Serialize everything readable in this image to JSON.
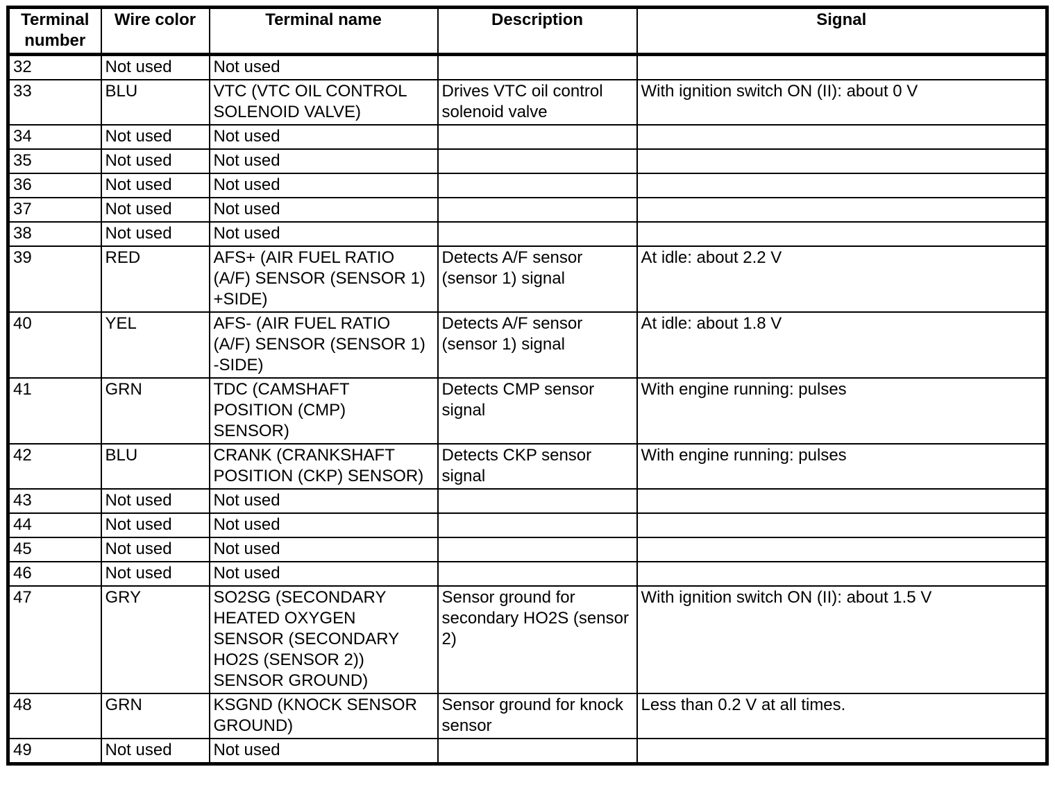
{
  "table": {
    "headers": [
      "Terminal\nnumber",
      "Wire color",
      "Terminal name",
      "Description",
      "Signal"
    ],
    "rows": [
      {
        "cells": [
          "32",
          "Not used",
          "Not used",
          "",
          ""
        ]
      },
      {
        "cells": [
          "33",
          "BLU",
          "VTC (VTC OIL CONTROL\nSOLENOID VALVE)",
          "Drives VTC oil control\nsolenoid valve",
          "With ignition switch ON (II): about 0 V"
        ]
      },
      {
        "cells": [
          "34",
          "Not used",
          "Not used",
          "",
          ""
        ]
      },
      {
        "cells": [
          "35",
          "Not used",
          "Not used",
          "",
          ""
        ]
      },
      {
        "cells": [
          "36",
          "Not used",
          "Not used",
          "",
          ""
        ]
      },
      {
        "cells": [
          "37",
          "Not used",
          "Not used",
          "",
          ""
        ]
      },
      {
        "cells": [
          "38",
          "Not used",
          "Not used",
          "",
          ""
        ]
      },
      {
        "cells": [
          "39",
          "RED",
          "AFS+ (AIR FUEL RATIO\n(A/F) SENSOR (SENSOR 1)\n+SIDE)",
          "Detects A/F sensor\n(sensor 1) signal",
          "At idle: about 2.2 V"
        ]
      },
      {
        "cells": [
          "40",
          "YEL",
          "AFS- (AIR FUEL RATIO\n(A/F) SENSOR (SENSOR 1)\n-SIDE)",
          "Detects A/F sensor\n(sensor 1) signal",
          "At idle: about 1.8 V"
        ]
      },
      {
        "cells": [
          "41",
          "GRN",
          "TDC (CAMSHAFT\nPOSITION (CMP)\nSENSOR)",
          "Detects CMP sensor\nsignal",
          "With engine running: pulses"
        ]
      },
      {
        "cells": [
          "42",
          "BLU",
          "CRANK (CRANKSHAFT\nPOSITION (CKP) SENSOR)",
          "Detects CKP sensor\nsignal",
          "With engine running: pulses"
        ]
      },
      {
        "cells": [
          "43",
          "Not used",
          "Not used",
          "",
          ""
        ]
      },
      {
        "cells": [
          "44",
          "Not used",
          "Not used",
          "",
          ""
        ]
      },
      {
        "cells": [
          "45",
          "Not used",
          "Not used",
          "",
          ""
        ]
      },
      {
        "cells": [
          "46",
          "Not used",
          "Not used",
          "",
          ""
        ]
      },
      {
        "cells": [
          "47",
          "GRY",
          "SO2SG (SECONDARY\nHEATED OXYGEN\nSENSOR (SECONDARY\nHO2S (SENSOR 2))\nSENSOR GROUND)",
          "Sensor ground for\nsecondary HO2S (sensor\n2)",
          "With ignition switch ON (II): about 1.5 V"
        ]
      },
      {
        "cells": [
          "48",
          "GRN",
          "KSGND (KNOCK SENSOR\nGROUND)",
          "Sensor ground for knock\nsensor",
          "Less than 0.2 V at all times."
        ]
      },
      {
        "cells": [
          "49",
          "Not used",
          "Not used",
          "",
          ""
        ]
      }
    ]
  }
}
